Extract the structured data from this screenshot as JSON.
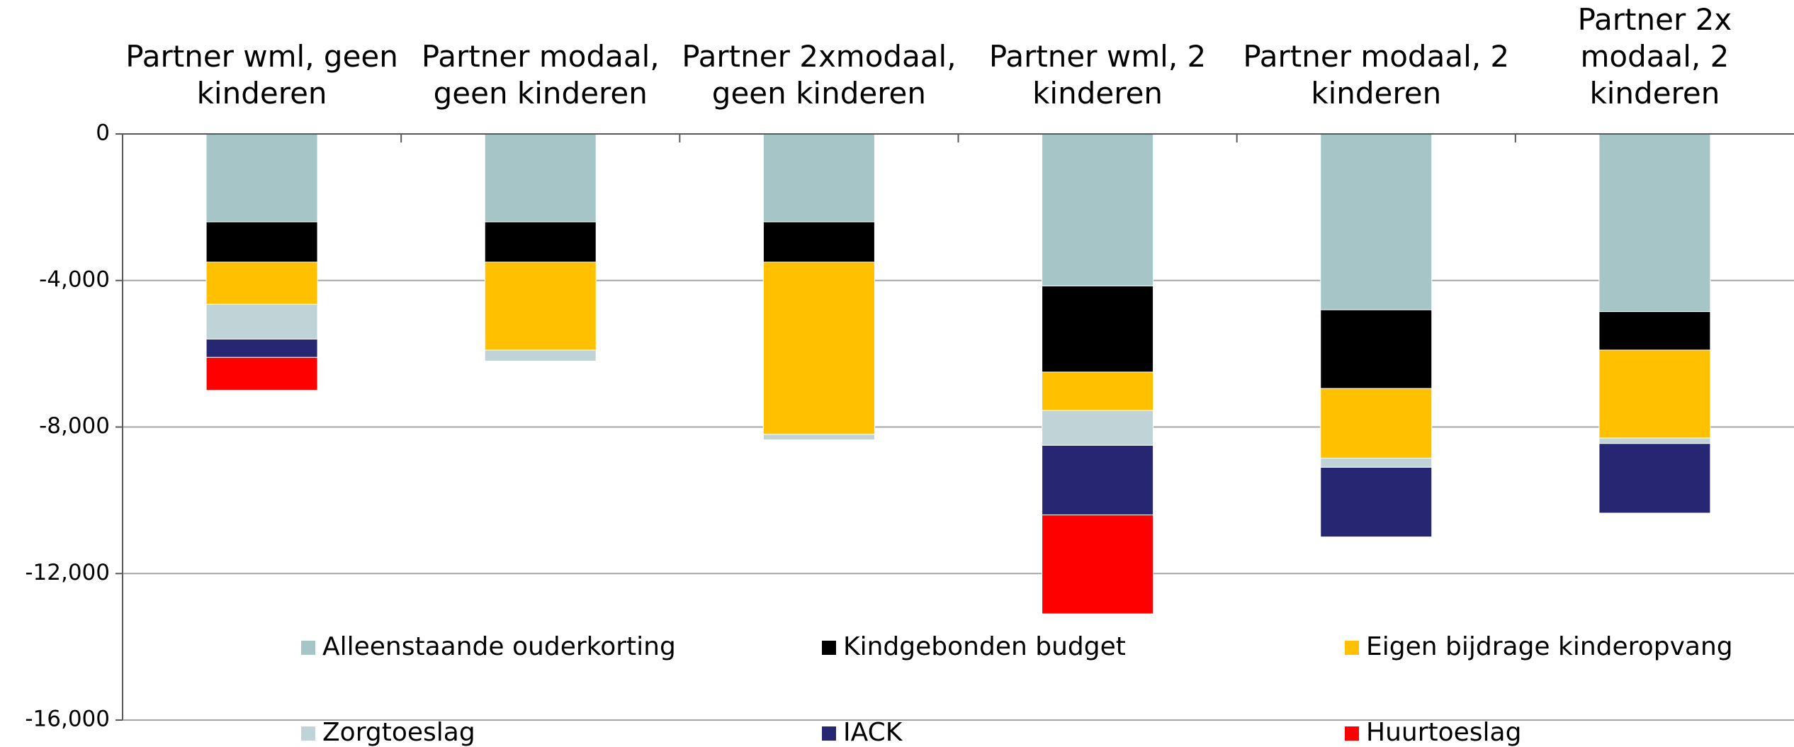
{
  "chart_data": {
    "type": "stacked_bar",
    "categories": [
      "Partner wml, geen kinderen",
      "Partner modaal, geen kinderen",
      "Partner 2xmodaal, geen kinderen",
      "Partner wml, 2 kinderen",
      "Partner modaal, 2 kinderen",
      "Partner 2x modaal, 2 kinderen"
    ],
    "series": [
      {
        "name": "Alleenstaande ouderkorting",
        "color": "#a5c5c7",
        "values": [
          -2400,
          -2400,
          -2400,
          -4150,
          -4800,
          -4850
        ]
      },
      {
        "name": "Kindgebonden budget",
        "color": "#000000",
        "values": [
          -1100,
          -1100,
          -1100,
          -2350,
          -2150,
          -1050
        ]
      },
      {
        "name": "Eigen bijdrage kinderopvang",
        "color": "#ffc000",
        "values": [
          -1150,
          -2400,
          -4700,
          -1050,
          -1900,
          -2400
        ]
      },
      {
        "name": "Zorgtoeslag",
        "color": "#c0d4d8",
        "values": [
          -950,
          -300,
          -150,
          -950,
          -250,
          -150
        ]
      },
      {
        "name": "IACK",
        "color": "#262673",
        "values": [
          -500,
          0,
          0,
          -1900,
          -1900,
          -1900
        ]
      },
      {
        "name": "Huurtoeslag",
        "color": "#ff0000",
        "values": [
          -900,
          0,
          0,
          -2700,
          0,
          0
        ]
      }
    ],
    "ylim": [
      -16000,
      0
    ],
    "yticks": [
      0,
      {
        "value": -4000,
        "label": "-4,000"
      },
      {
        "value": -8000,
        "label": "-8,000"
      },
      {
        "value": -12000,
        "label": "-12,000"
      },
      {
        "value": -16000,
        "label": "-16,000"
      }
    ],
    "grid": true,
    "legend": "bottom"
  }
}
